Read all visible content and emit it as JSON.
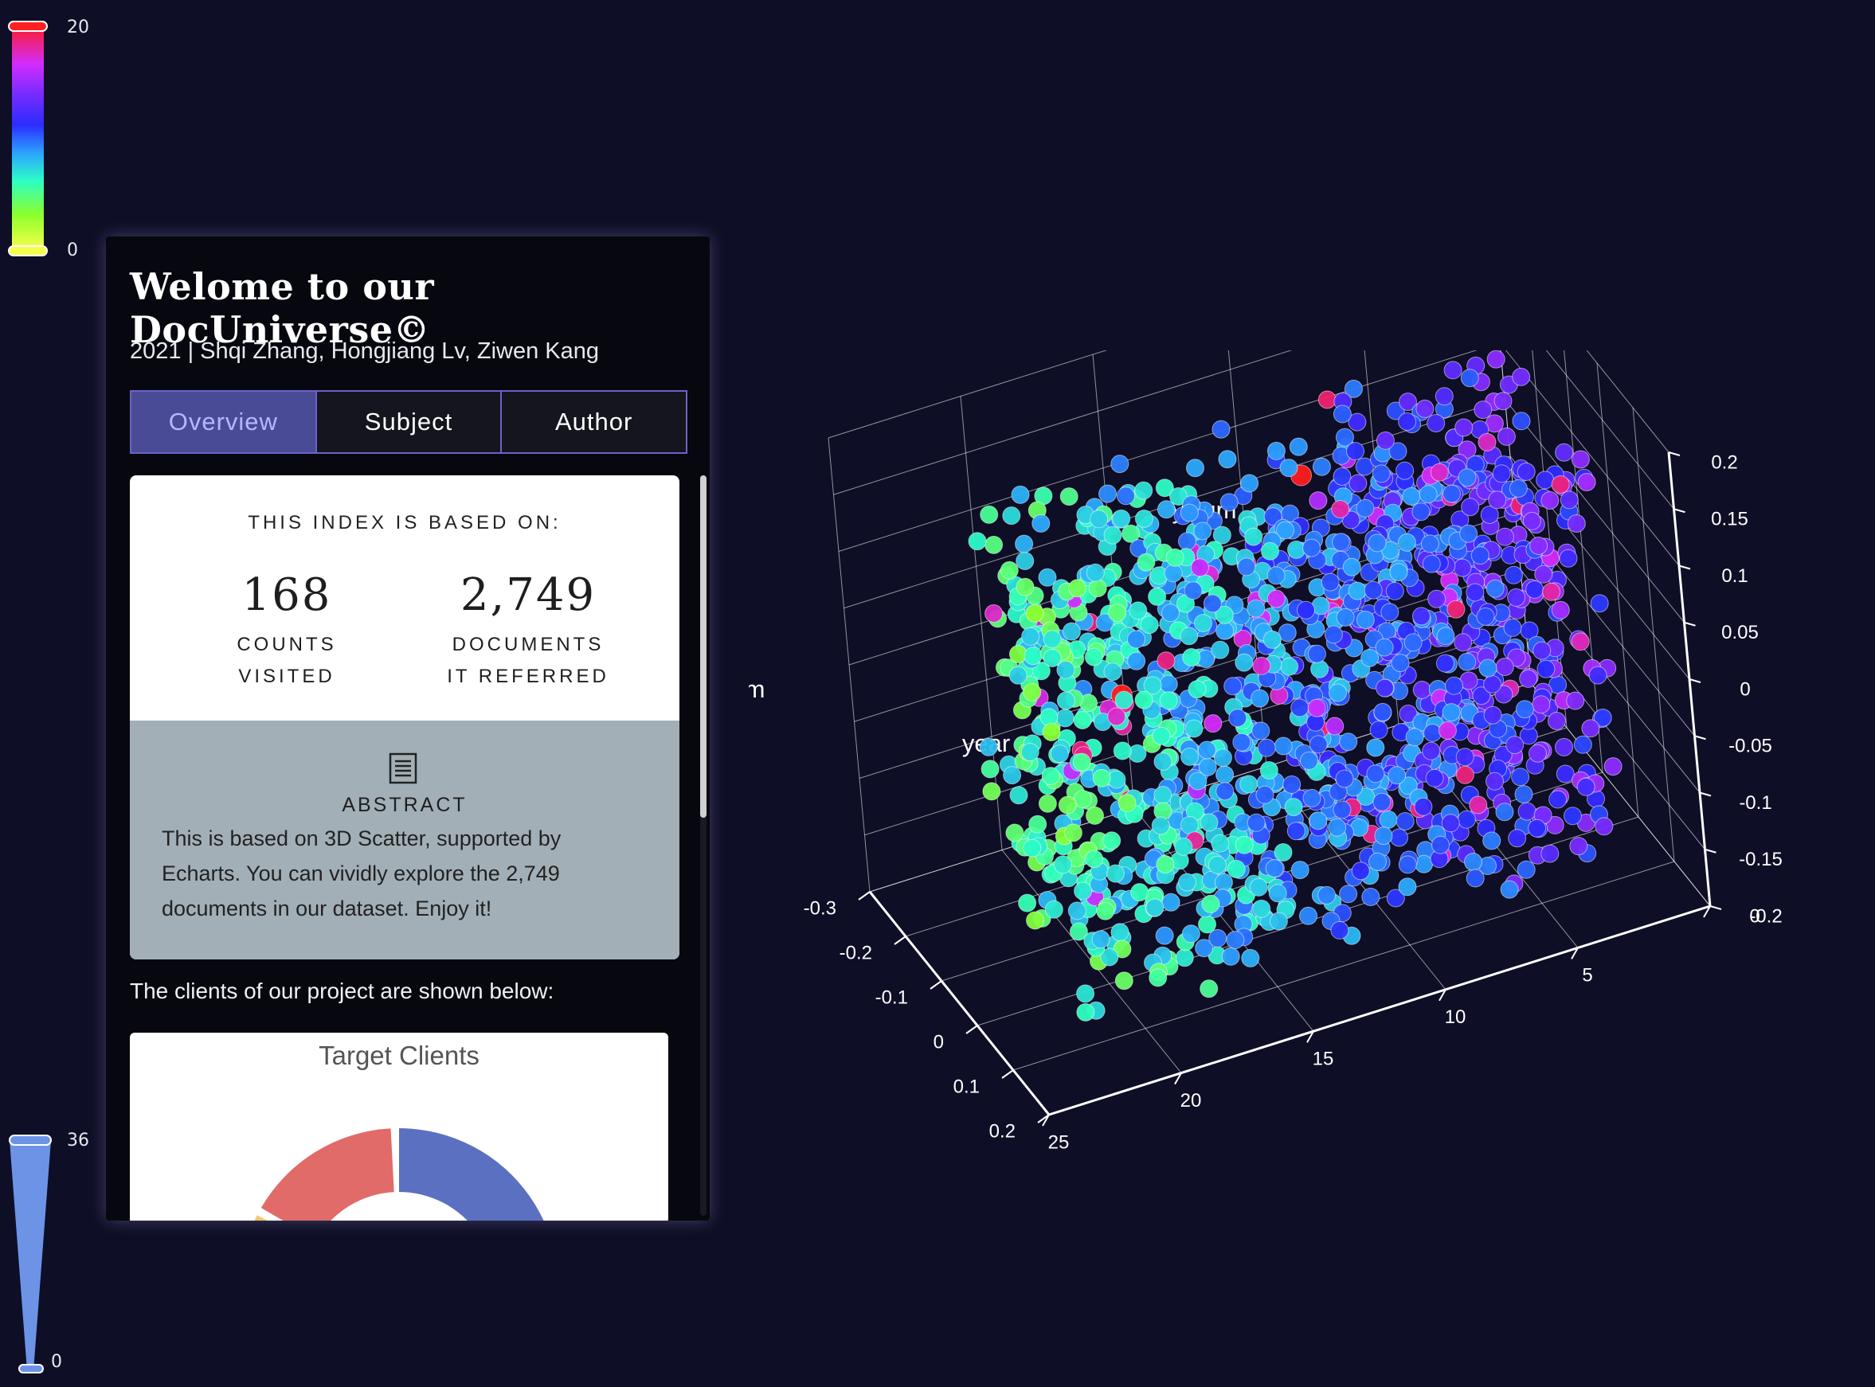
{
  "visual_map_color": {
    "max": "20",
    "min": "0"
  },
  "visual_map_size": {
    "max": "36",
    "min": "0"
  },
  "panel": {
    "title": "Welome to our DocUniverse©",
    "subtitle": "2021 | Shqi Zhang, Hongjiang Lv, Ziwen Kang",
    "tabs": [
      {
        "label": "Overview",
        "active": true
      },
      {
        "label": "Subject",
        "active": false
      },
      {
        "label": "Author",
        "active": false
      }
    ],
    "stats": {
      "heading": "THIS INDEX IS BASED ON:",
      "items": [
        {
          "value": "168",
          "label_line1": "COUNTS",
          "label_line2": "VISITED"
        },
        {
          "value": "2,749",
          "label_line1": "DOCUMENTS",
          "label_line2": "IT REFERRED"
        }
      ]
    },
    "abstract": {
      "icon": "document-icon",
      "title": "ABSTRACT",
      "text": "This is based on 3D Scatter, supported by Echarts. You can vividly explore the 2,749 documents in our dataset. Enjoy it!"
    },
    "clients_intro": "The clients of our project are shown below:",
    "clients_chart_title": "Target Clients"
  },
  "chart_data": [
    {
      "type": "scatter",
      "dimensions": 3,
      "axes": {
        "x": {
          "label": "xNum",
          "ticks": [
            "-0.3",
            "-0.2",
            "-0.1",
            "0",
            "0.1",
            "0.2"
          ],
          "range": [
            -0.3,
            0.2
          ]
        },
        "y": {
          "label": "yNum",
          "ticks": [
            "-0.2",
            "-0.15",
            "-0.1",
            "-0.05",
            "0",
            "0.05",
            "0.1",
            "0.15",
            "0.2"
          ],
          "range": [
            -0.2,
            0.2
          ]
        },
        "z": {
          "label": "year",
          "ticks": [
            "0",
            "5",
            "10",
            "15",
            "20",
            "25"
          ],
          "range": [
            0,
            25
          ]
        }
      },
      "grid": true,
      "point_count_shown": 2749,
      "color_scale": [
        "#f5ff4a",
        "#8cff2c",
        "#2cffc4",
        "#2ca8ff",
        "#2c2cff",
        "#7f2cff",
        "#d22cff",
        "#ff1c1c"
      ]
    },
    {
      "type": "pie",
      "title": "Target Clients",
      "style": "donut",
      "slice_colors": [
        "#5b70c0",
        "#e06b68",
        "#f2c96a"
      ]
    }
  ]
}
